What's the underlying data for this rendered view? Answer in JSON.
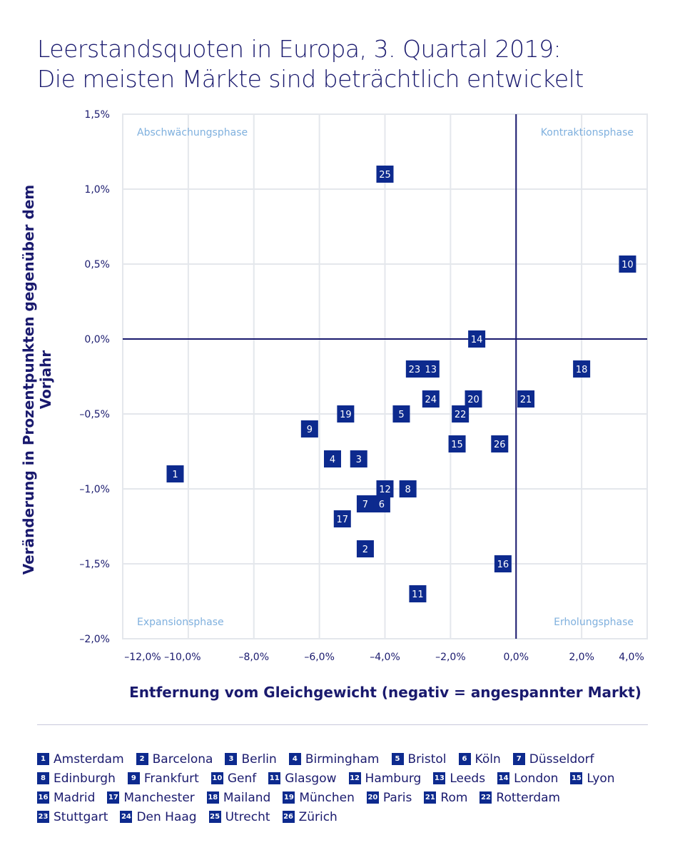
{
  "title_lines": [
    "Leerstandsquoten in Europa, 3. Quartal 2019:",
    "Die meisten Märkte sind beträchtlich entwickelt"
  ],
  "colors": {
    "marker": "#0d2a8e",
    "axis": "#1a1a6e",
    "grid": "#e4e7ec",
    "quadrant_label": "#7fb0de"
  },
  "chart_data": {
    "type": "scatter",
    "xlabel": "Entfernung vom Gleichgewicht (negativ = angespannter Markt)",
    "ylabel": "Veränderung in Prozentpunkten gegenüber dem Vorjahr",
    "xlim": [
      -12,
      4
    ],
    "ylim": [
      -2,
      1.5
    ],
    "xticks": [
      -12,
      -10,
      -8,
      -6,
      -4,
      -2,
      0,
      2,
      4
    ],
    "xtick_labels": [
      "–12,0%",
      "–10,0%",
      "–8,0%",
      "–6,0%",
      "–4,0%",
      "–2,0%",
      "0,0%",
      "2,0%",
      "4,0%"
    ],
    "yticks": [
      1.5,
      1.0,
      0.5,
      0,
      -0.5,
      -1.0,
      -1.5,
      -2.0
    ],
    "ytick_labels": [
      "1,5%",
      "1,0%",
      "0,5%",
      "0,0%",
      "–0,5%",
      "–1,0%",
      "–1,5%",
      "–2,0%"
    ],
    "grid": true,
    "quadrant_labels": {
      "top_left": "Abschwächungsphase",
      "top_right": "Kontraktionsphase",
      "bottom_left": "Expansionsphase",
      "bottom_right": "Erholungsphase"
    },
    "points": [
      {
        "id": "1",
        "name": "Amsterdam",
        "x": -10.4,
        "y": -0.9
      },
      {
        "id": "2",
        "name": "Barcelona",
        "x": -4.6,
        "y": -1.4
      },
      {
        "id": "3",
        "name": "Berlin",
        "x": -4.8,
        "y": -0.8
      },
      {
        "id": "4",
        "name": "Birmingham",
        "x": -5.6,
        "y": -0.8
      },
      {
        "id": "5",
        "name": "Bristol",
        "x": -3.5,
        "y": -0.5
      },
      {
        "id": "6",
        "name": "Köln",
        "x": -4.1,
        "y": -1.1
      },
      {
        "id": "7",
        "name": "Düsseldorf",
        "x": -4.6,
        "y": -1.1
      },
      {
        "id": "8",
        "name": "Edinburgh",
        "x": -3.3,
        "y": -1.0
      },
      {
        "id": "9",
        "name": "Frankfurt",
        "x": -6.3,
        "y": -0.6
      },
      {
        "id": "10",
        "name": "Genf",
        "x": 3.4,
        "y": 0.5
      },
      {
        "id": "11",
        "name": "Glasgow",
        "x": -3.0,
        "y": -1.7
      },
      {
        "id": "12",
        "name": "Hamburg",
        "x": -4.0,
        "y": -1.0
      },
      {
        "id": "13",
        "name": "Leeds",
        "x": -2.6,
        "y": -0.2
      },
      {
        "id": "14",
        "name": "London",
        "x": -1.2,
        "y": 0.0
      },
      {
        "id": "15",
        "name": "Lyon",
        "x": -1.8,
        "y": -0.7
      },
      {
        "id": "16",
        "name": "Madrid",
        "x": -0.4,
        "y": -1.5
      },
      {
        "id": "17",
        "name": "Manchester",
        "x": -5.3,
        "y": -1.2
      },
      {
        "id": "18",
        "name": "Mailand",
        "x": 2.0,
        "y": -0.2
      },
      {
        "id": "19",
        "name": "München",
        "x": -5.2,
        "y": -0.5
      },
      {
        "id": "20",
        "name": "Paris",
        "x": -1.3,
        "y": -0.4
      },
      {
        "id": "21",
        "name": "Rom",
        "x": 0.3,
        "y": -0.4
      },
      {
        "id": "22",
        "name": "Rotterdam",
        "x": -1.7,
        "y": -0.5
      },
      {
        "id": "23",
        "name": "Stuttgart",
        "x": -3.1,
        "y": -0.2
      },
      {
        "id": "24",
        "name": "Den Haag",
        "x": -2.6,
        "y": -0.4
      },
      {
        "id": "25",
        "name": "Utrecht",
        "x": -4.0,
        "y": 1.1
      },
      {
        "id": "26",
        "name": "Zürich",
        "x": -0.5,
        "y": -0.7
      }
    ]
  }
}
